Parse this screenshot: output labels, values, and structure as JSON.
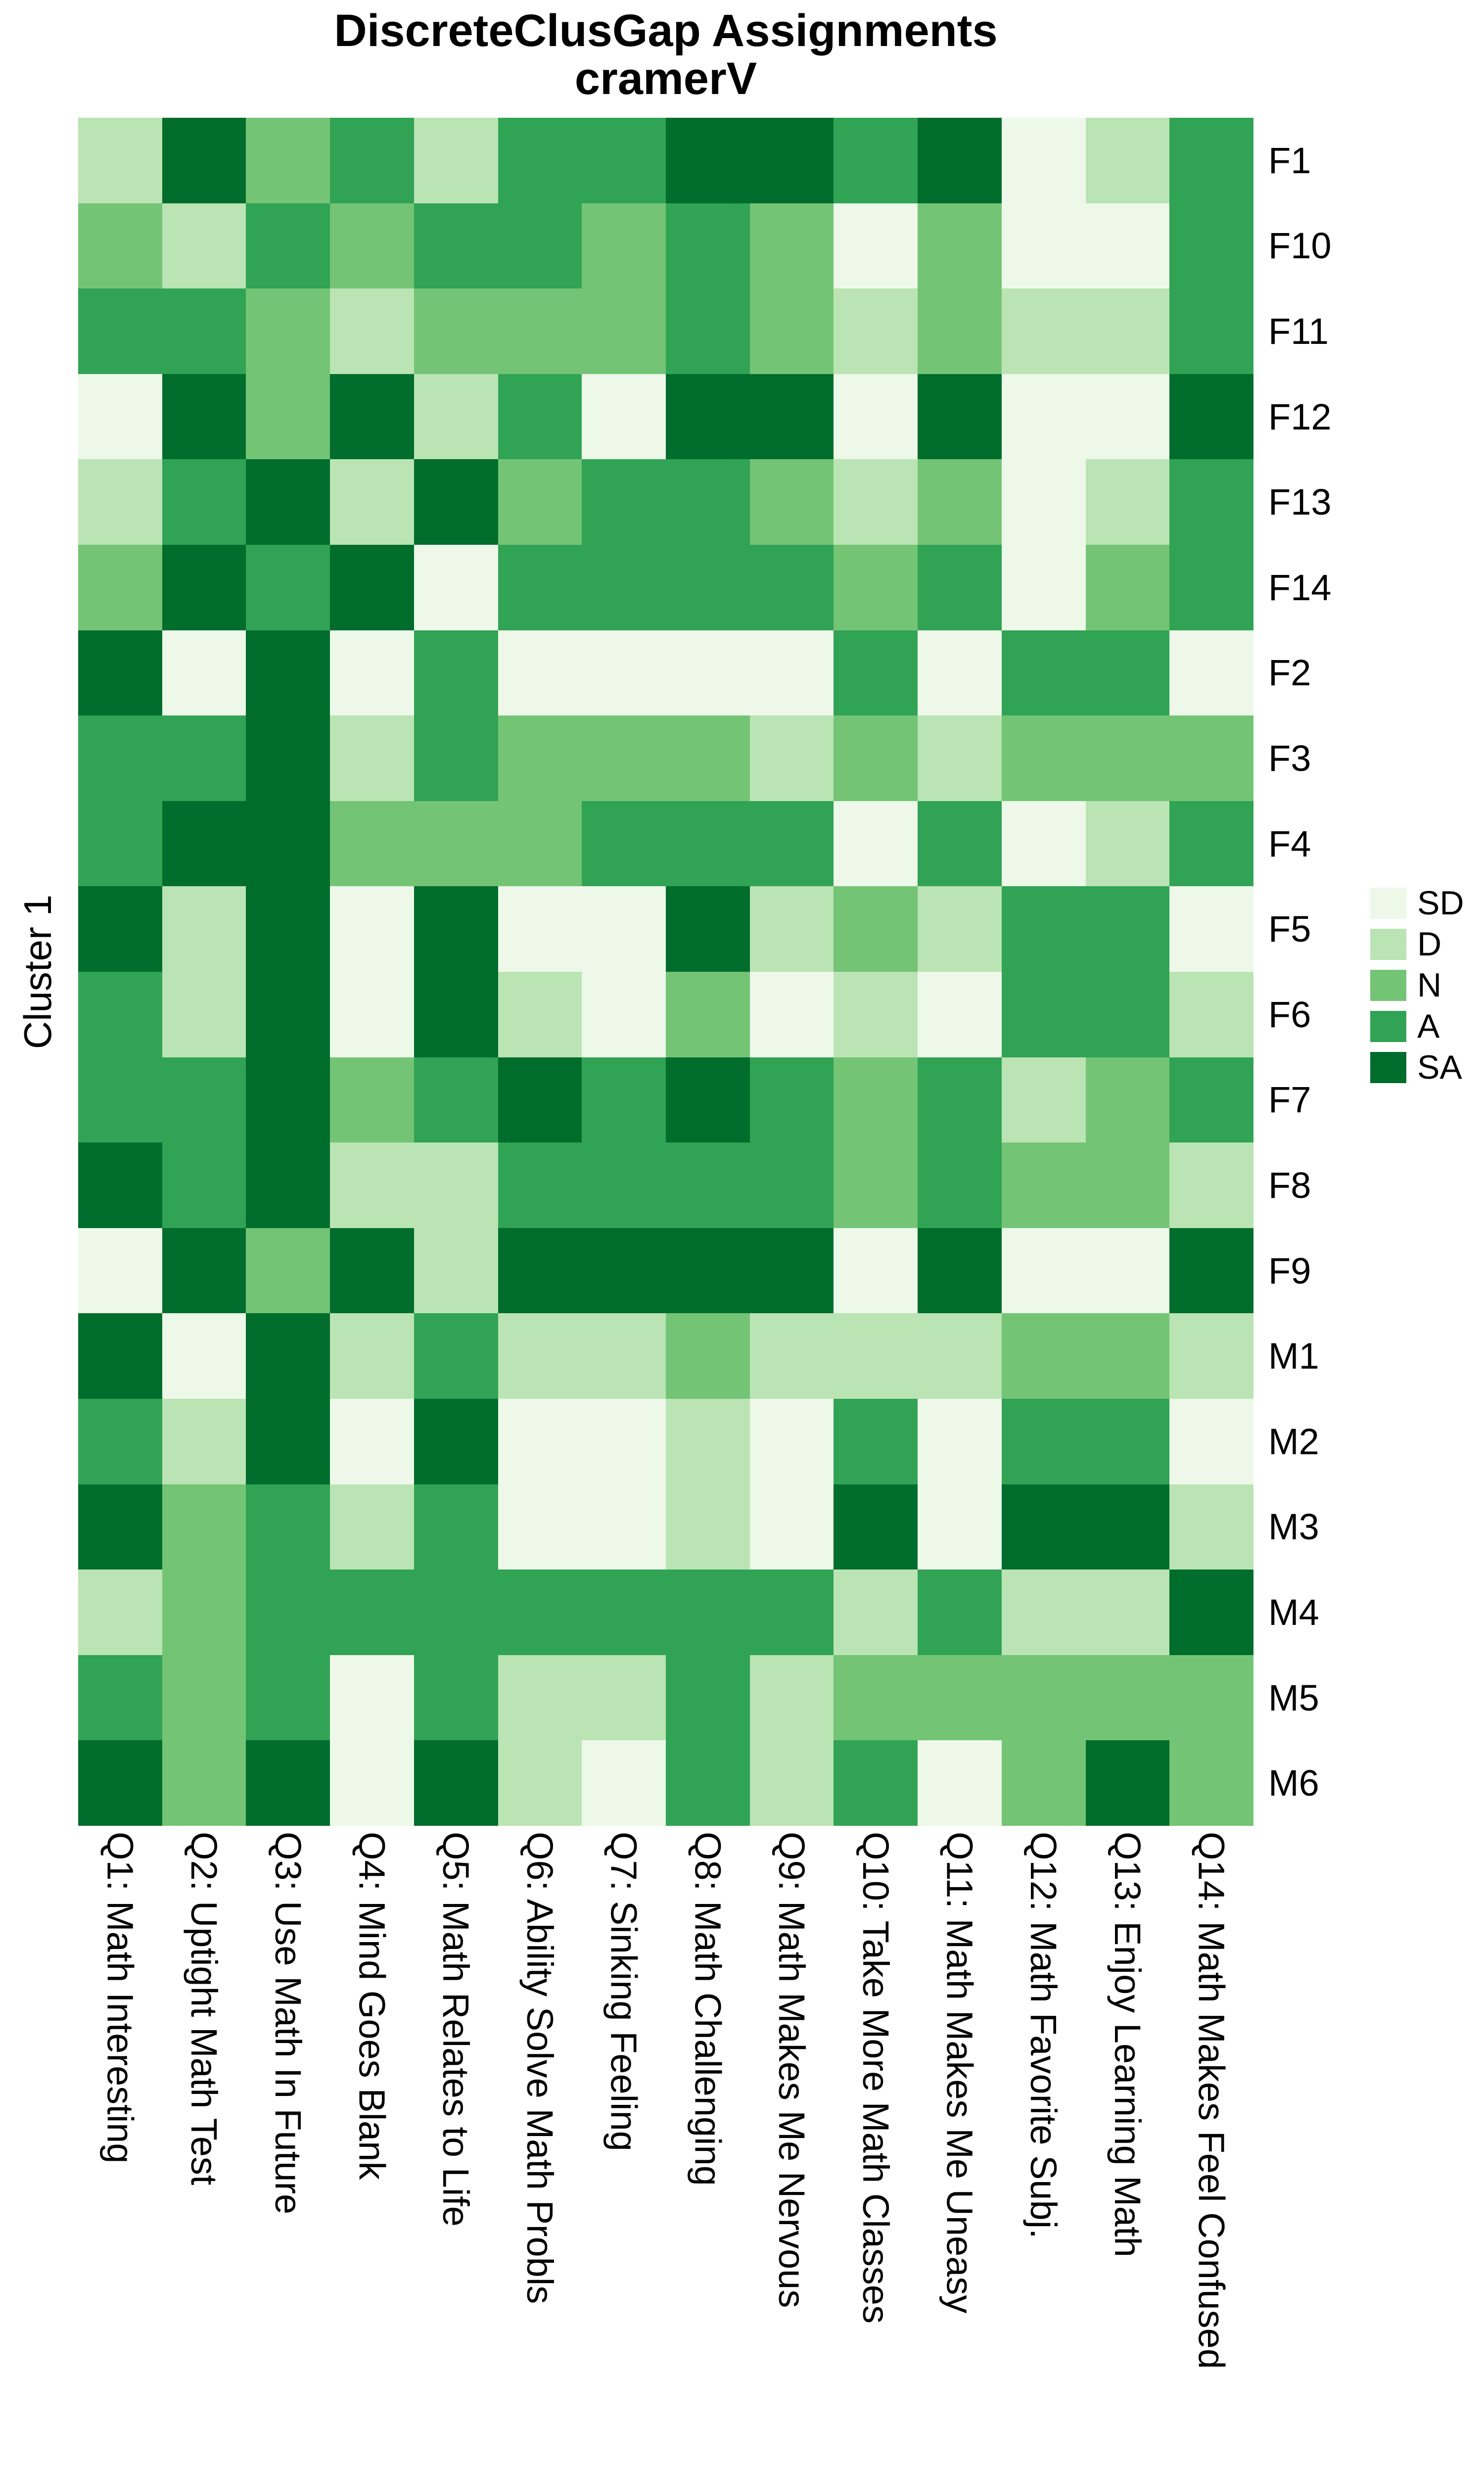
{
  "title": {
    "line1": "DiscreteClusGap Assignments",
    "line2": "cramerV"
  },
  "cluster_label": "Cluster 1",
  "legend": {
    "levels": [
      "SD",
      "D",
      "N",
      "A",
      "SA"
    ],
    "colors": {
      "SD": "#EDF8E9",
      "D": "#BAE4B3",
      "N": "#74C476",
      "A": "#31A354",
      "SA": "#006D2C"
    }
  },
  "chart_data": {
    "type": "heatmap",
    "title": "DiscreteClusGap Assignments",
    "subtitle": "cramerV",
    "ylabel": "Cluster 1",
    "legend_entries": [
      "SD",
      "D",
      "N",
      "A",
      "SA"
    ],
    "legend_position": "right",
    "x_labels": [
      "Q1: Math Interesting",
      "Q2: Uptight Math Test",
      "Q3: Use Math In Future",
      "Q4: Mind Goes Blank",
      "Q5: Math Relates to Life",
      "Q6: Ability Solve Math Probls",
      "Q7: Sinking Feeling",
      "Q8: Math Challenging",
      "Q9: Math Makes Me Nervous",
      "Q10: Take More Math Classes",
      "Q11: Math Makes Me Uneasy",
      "Q12: Math Favorite Subj.",
      "Q13: Enjoy Learning Math",
      "Q14: Math Makes Feel Confused"
    ],
    "y_labels": [
      "F1",
      "F10",
      "F11",
      "F12",
      "F13",
      "F14",
      "F2",
      "F3",
      "F4",
      "F5",
      "F6",
      "F7",
      "F8",
      "F9",
      "M1",
      "M2",
      "M3",
      "M4",
      "M5",
      "M6"
    ],
    "value_scale": [
      "SD",
      "D",
      "N",
      "A",
      "SA"
    ],
    "values": [
      [
        "D",
        "SA",
        "N",
        "A",
        "D",
        "A",
        "A",
        "SA",
        "SA",
        "A",
        "SA",
        "SD",
        "D",
        "A"
      ],
      [
        "N",
        "D",
        "A",
        "N",
        "A",
        "A",
        "N",
        "A",
        "N",
        "SD",
        "N",
        "SD",
        "SD",
        "A"
      ],
      [
        "A",
        "A",
        "N",
        "D",
        "N",
        "N",
        "N",
        "A",
        "N",
        "D",
        "N",
        "D",
        "D",
        "A"
      ],
      [
        "SD",
        "SA",
        "N",
        "SA",
        "D",
        "A",
        "SD",
        "SA",
        "SA",
        "SD",
        "SA",
        "SD",
        "SD",
        "SA"
      ],
      [
        "D",
        "A",
        "SA",
        "D",
        "SA",
        "N",
        "A",
        "A",
        "N",
        "D",
        "N",
        "SD",
        "D",
        "A"
      ],
      [
        "N",
        "SA",
        "A",
        "SA",
        "SD",
        "A",
        "A",
        "A",
        "A",
        "N",
        "A",
        "SD",
        "N",
        "A"
      ],
      [
        "SA",
        "SD",
        "SA",
        "SD",
        "A",
        "SD",
        "SD",
        "SD",
        "SD",
        "A",
        "SD",
        "A",
        "A",
        "SD"
      ],
      [
        "A",
        "A",
        "SA",
        "D",
        "A",
        "N",
        "N",
        "N",
        "D",
        "N",
        "D",
        "N",
        "N",
        "N"
      ],
      [
        "A",
        "SA",
        "SA",
        "N",
        "N",
        "N",
        "A",
        "A",
        "A",
        "SD",
        "A",
        "SD",
        "D",
        "A"
      ],
      [
        "SA",
        "D",
        "SA",
        "SD",
        "SA",
        "SD",
        "SD",
        "SA",
        "D",
        "N",
        "D",
        "A",
        "A",
        "SD"
      ],
      [
        "A",
        "D",
        "SA",
        "SD",
        "SA",
        "D",
        "SD",
        "N",
        "SD",
        "D",
        "SD",
        "A",
        "A",
        "D"
      ],
      [
        "A",
        "A",
        "SA",
        "N",
        "A",
        "SA",
        "A",
        "SA",
        "A",
        "N",
        "A",
        "D",
        "N",
        "A"
      ],
      [
        "SA",
        "A",
        "SA",
        "D",
        "D",
        "A",
        "A",
        "A",
        "A",
        "N",
        "A",
        "N",
        "N",
        "D"
      ],
      [
        "SD",
        "SA",
        "N",
        "SA",
        "D",
        "SA",
        "SA",
        "SA",
        "SA",
        "SD",
        "SA",
        "SD",
        "SD",
        "SA"
      ],
      [
        "SA",
        "SD",
        "SA",
        "D",
        "A",
        "D",
        "D",
        "N",
        "D",
        "D",
        "D",
        "N",
        "N",
        "D"
      ],
      [
        "A",
        "D",
        "SA",
        "SD",
        "SA",
        "SD",
        "SD",
        "D",
        "SD",
        "A",
        "SD",
        "A",
        "A",
        "SD"
      ],
      [
        "SA",
        "N",
        "A",
        "D",
        "A",
        "SD",
        "SD",
        "D",
        "SD",
        "SA",
        "SD",
        "SA",
        "SA",
        "D"
      ],
      [
        "D",
        "N",
        "A",
        "A",
        "A",
        "A",
        "A",
        "A",
        "A",
        "D",
        "A",
        "D",
        "D",
        "SA"
      ],
      [
        "A",
        "N",
        "A",
        "SD",
        "A",
        "D",
        "D",
        "A",
        "D",
        "N",
        "N",
        "N",
        "N",
        "N"
      ],
      [
        "SA",
        "N",
        "SA",
        "SD",
        "SA",
        "D",
        "SD",
        "A",
        "D",
        "A",
        "SD",
        "N",
        "SA",
        "N"
      ]
    ]
  }
}
